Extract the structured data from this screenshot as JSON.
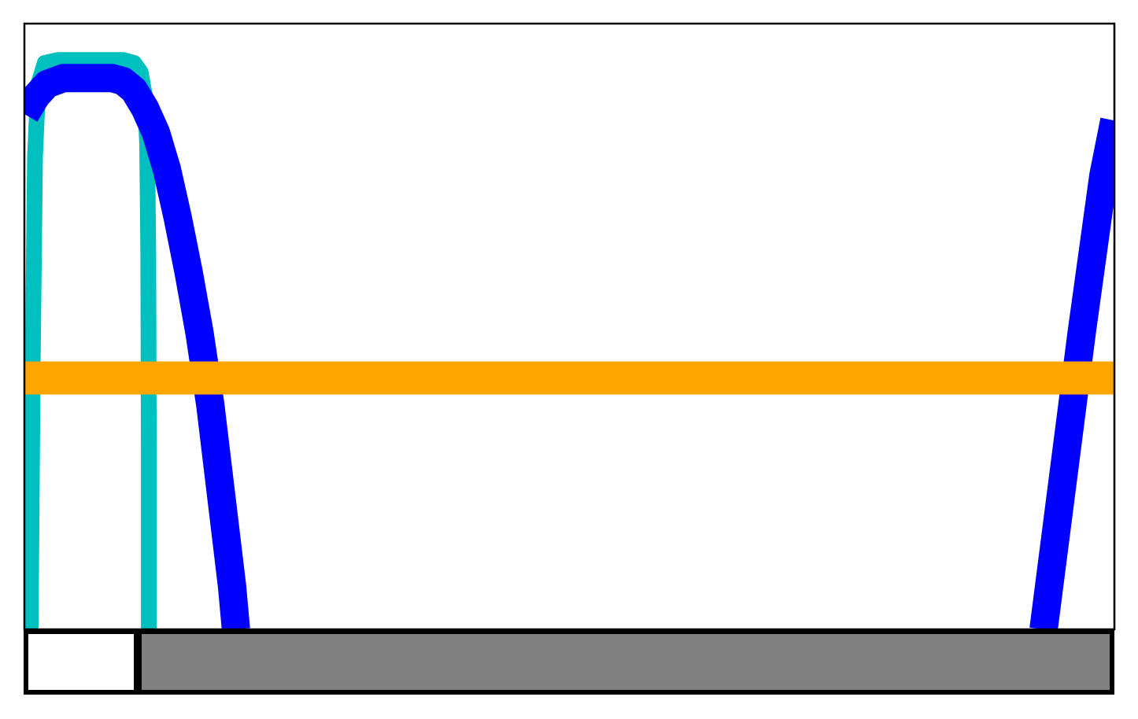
{
  "chart_data": {
    "type": "line",
    "title": "",
    "xlabel": "",
    "ylabel": "",
    "xlim": [
      0,
      1
    ],
    "ylim": [
      0,
      1
    ],
    "grid": false,
    "legend": "none",
    "series": [
      {
        "color": "#00bfbf",
        "points": [
          [
            0.0,
            0.0
          ],
          [
            0.005,
            0.0
          ],
          [
            0.007,
            0.45
          ],
          [
            0.009,
            0.78
          ],
          [
            0.012,
            0.9
          ],
          [
            0.018,
            0.935
          ],
          [
            0.03,
            0.94
          ],
          [
            0.06,
            0.94
          ],
          [
            0.09,
            0.94
          ],
          [
            0.1,
            0.935
          ],
          [
            0.106,
            0.92
          ],
          [
            0.11,
            0.88
          ],
          [
            0.112,
            0.8
          ],
          [
            0.113,
            0.62
          ],
          [
            0.1135,
            0.3
          ],
          [
            0.1135,
            0.0
          ]
        ]
      },
      {
        "color": "#0000ff",
        "points": [
          [
            0.0,
            0.85
          ],
          [
            0.01,
            0.88
          ],
          [
            0.02,
            0.9
          ],
          [
            0.035,
            0.91
          ],
          [
            0.06,
            0.91
          ],
          [
            0.08,
            0.91
          ],
          [
            0.09,
            0.905
          ],
          [
            0.1,
            0.89
          ],
          [
            0.11,
            0.86
          ],
          [
            0.12,
            0.82
          ],
          [
            0.13,
            0.76
          ],
          [
            0.14,
            0.68
          ],
          [
            0.15,
            0.59
          ],
          [
            0.16,
            0.49
          ],
          [
            0.17,
            0.37
          ],
          [
            0.18,
            0.22
          ],
          [
            0.19,
            0.07
          ],
          [
            0.1935,
            0.0
          ]
        ]
      },
      {
        "color": "#0000ff",
        "points": [
          [
            0.935,
            0.0
          ],
          [
            0.94,
            0.07
          ],
          [
            0.95,
            0.21
          ],
          [
            0.96,
            0.35
          ],
          [
            0.97,
            0.49
          ],
          [
            0.98,
            0.62
          ],
          [
            0.99,
            0.75
          ],
          [
            1.0,
            0.84
          ]
        ]
      },
      {
        "color": "#ffa500",
        "points": [
          [
            0.0,
            0.415
          ],
          [
            1.0,
            0.415
          ]
        ]
      }
    ],
    "progress_bar": {
      "value": 0.1,
      "fill_color": "#ffffff",
      "track_color": "#808080",
      "border_color": "#000000"
    }
  }
}
